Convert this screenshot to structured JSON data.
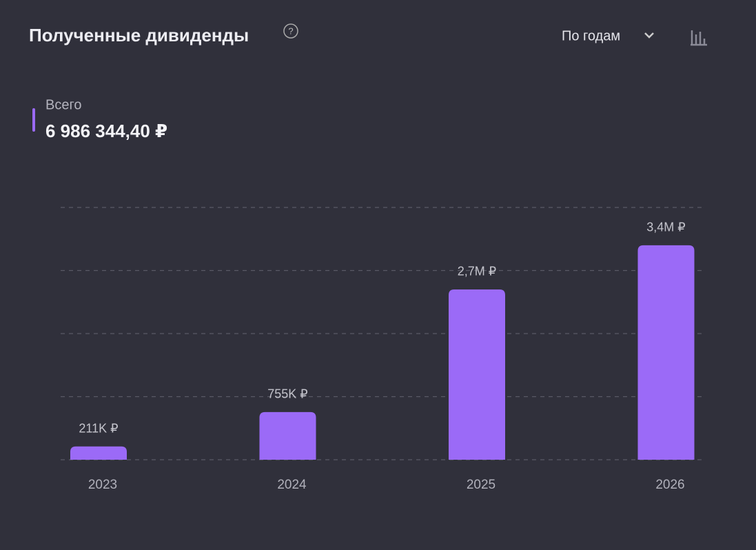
{
  "header": {
    "title": "Полученные дивиденды",
    "period": "По годам"
  },
  "total": {
    "label": "Всего",
    "value": "6 986 344,40 ₽"
  },
  "chart_data": {
    "type": "bar",
    "categories": [
      "2023",
      "2024",
      "2025",
      "2026"
    ],
    "values": [
      211000,
      755000,
      2700000,
      3400000
    ],
    "value_labels": [
      "211K ₽",
      "755K ₽",
      "2,7M ₽",
      "3,4M ₽"
    ],
    "color": "#9b6af7",
    "ylim": [
      0,
      4000000
    ],
    "yticks": [
      0,
      1000000,
      2000000,
      3000000,
      4000000
    ],
    "grid": true
  }
}
